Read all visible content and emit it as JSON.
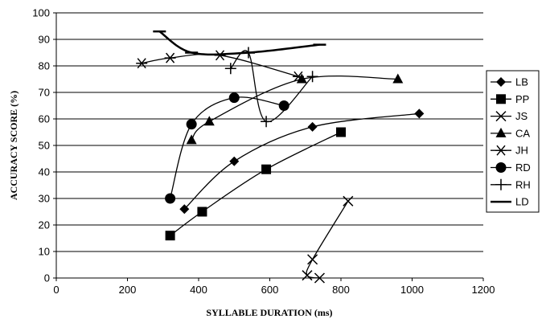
{
  "chart_data": {
    "type": "line",
    "title": "",
    "xlabel": "SYLLABLE DURATION (ms)",
    "ylabel": "ACCURACY SCORE (%)",
    "xlim": [
      0,
      1200
    ],
    "ylim": [
      0,
      100
    ],
    "x_ticks": [
      0,
      200,
      400,
      600,
      800,
      1000,
      1200
    ],
    "y_ticks": [
      0,
      10,
      20,
      30,
      40,
      50,
      60,
      70,
      80,
      90,
      100
    ],
    "grid": "horizontal",
    "legend_position": "right",
    "series": [
      {
        "name": "LB",
        "marker": "diamond",
        "points": [
          [
            360,
            26
          ],
          [
            500,
            44
          ],
          [
            720,
            57
          ],
          [
            1020,
            62
          ]
        ]
      },
      {
        "name": "PP",
        "marker": "square",
        "points": [
          [
            320,
            16
          ],
          [
            410,
            25
          ],
          [
            590,
            41
          ],
          [
            800,
            55
          ]
        ]
      },
      {
        "name": "JS",
        "marker": "x",
        "points": [
          [
            820,
            29
          ],
          [
            720,
            7
          ],
          [
            705,
            1
          ],
          [
            740,
            0
          ]
        ]
      },
      {
        "name": "CA",
        "marker": "triangle",
        "points": [
          [
            380,
            52
          ],
          [
            430,
            59
          ],
          [
            690,
            75
          ],
          [
            960,
            75
          ]
        ]
      },
      {
        "name": "JH",
        "marker": "star",
        "points": [
          [
            240,
            81
          ],
          [
            320,
            83
          ],
          [
            460,
            84
          ],
          [
            680,
            76
          ]
        ]
      },
      {
        "name": "RD",
        "marker": "circle",
        "points": [
          [
            320,
            30
          ],
          [
            380,
            58
          ],
          [
            500,
            68
          ],
          [
            640,
            65
          ]
        ]
      },
      {
        "name": "RH",
        "marker": "plus",
        "points": [
          [
            490,
            79
          ],
          [
            540,
            85
          ],
          [
            590,
            59
          ],
          [
            720,
            76
          ]
        ]
      },
      {
        "name": "LD",
        "marker": "dash",
        "points": [
          [
            290,
            93
          ],
          [
            380,
            85
          ],
          [
            540,
            85
          ],
          [
            740,
            88
          ]
        ]
      }
    ]
  }
}
